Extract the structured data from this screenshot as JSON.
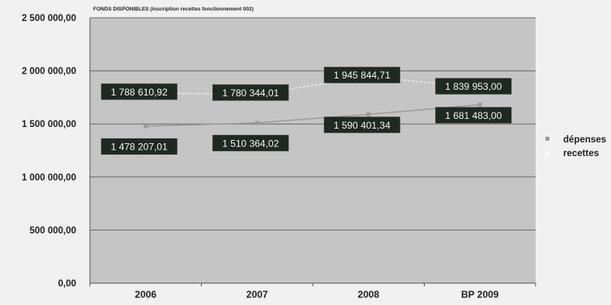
{
  "chart_data": {
    "type": "line",
    "title": "FONDS DISPONIBLES (inscription recettes fonctionnement 002)",
    "xlabel": "",
    "ylabel": "",
    "categories": [
      "2006",
      "2007",
      "2008",
      "BP 2009"
    ],
    "ylim": [
      0,
      2500000
    ],
    "yticks": [
      0,
      500000,
      1000000,
      1500000,
      2000000,
      2500000
    ],
    "ytick_labels": [
      "0,00",
      "500 000,00",
      "1 000 000,00",
      "1 500 000,00",
      "2 000 000,00",
      "2 500 000,00"
    ],
    "grid": true,
    "legend_position": "right",
    "series": [
      {
        "name": "dépenses",
        "values": [
          1478207.01,
          1510364.02,
          1590401.34,
          1681483.0
        ],
        "labels": [
          "1 478 207,01",
          "1 510 364,02",
          "1 590 401,34",
          "1 681 483,00"
        ],
        "color": "#9c9c9c"
      },
      {
        "name": "recettes",
        "values": [
          1788610.92,
          1780344.01,
          1945844.71,
          1839953.0
        ],
        "labels": [
          "1 788 610,92",
          "1 780 344,01",
          "1 945 844,71",
          "1 839 953,00"
        ],
        "color": "#ececec"
      }
    ],
    "colors": {
      "plot_background": "#c5c5c5",
      "label_box": "#1f2922",
      "label_text": "#f3f3f3",
      "gridline": "#6a6a6a",
      "page_background": "#f1f1f1"
    }
  }
}
